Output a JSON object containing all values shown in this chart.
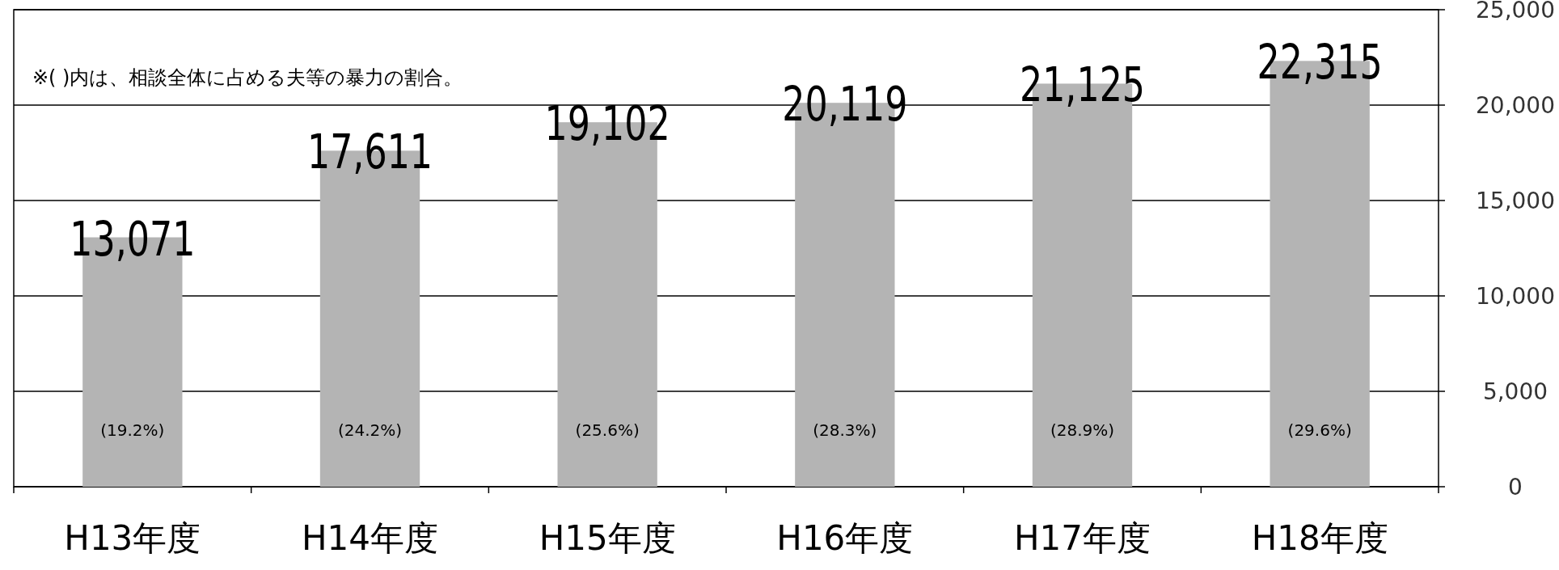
{
  "chart_data": {
    "type": "bar",
    "categories": [
      "H13年度",
      "H14年度",
      "H15年度",
      "H16年度",
      "H17年度",
      "H18年度"
    ],
    "values": [
      13071,
      17611,
      19102,
      20119,
      21125,
      22315
    ],
    "color": "#b4b4b4",
    "value_labels": [
      "13,071",
      "17,611",
      "19,102",
      "20,119",
      "21,125",
      "22,315"
    ],
    "ylim": [
      0,
      25000
    ],
    "yticks": [
      {
        "value": 0,
        "label": "0"
      },
      {
        "value": 5000,
        "label": "5,000"
      },
      {
        "value": 10000,
        "label": "10,000"
      },
      {
        "value": 15000,
        "label": "15,000"
      },
      {
        "value": 20000,
        "label": "20,000"
      },
      {
        "value": 25000,
        "label": "25,000"
      }
    ],
    "grid": "y",
    "annotations": [
      "※(  )内は、相談全体に占める夫等の暴力の割合。",
      "(19.2%)",
      "(24.2%)",
      "(25.6%)",
      "(28.3%)",
      "(28.9%)",
      "(29.6%)"
    ]
  }
}
